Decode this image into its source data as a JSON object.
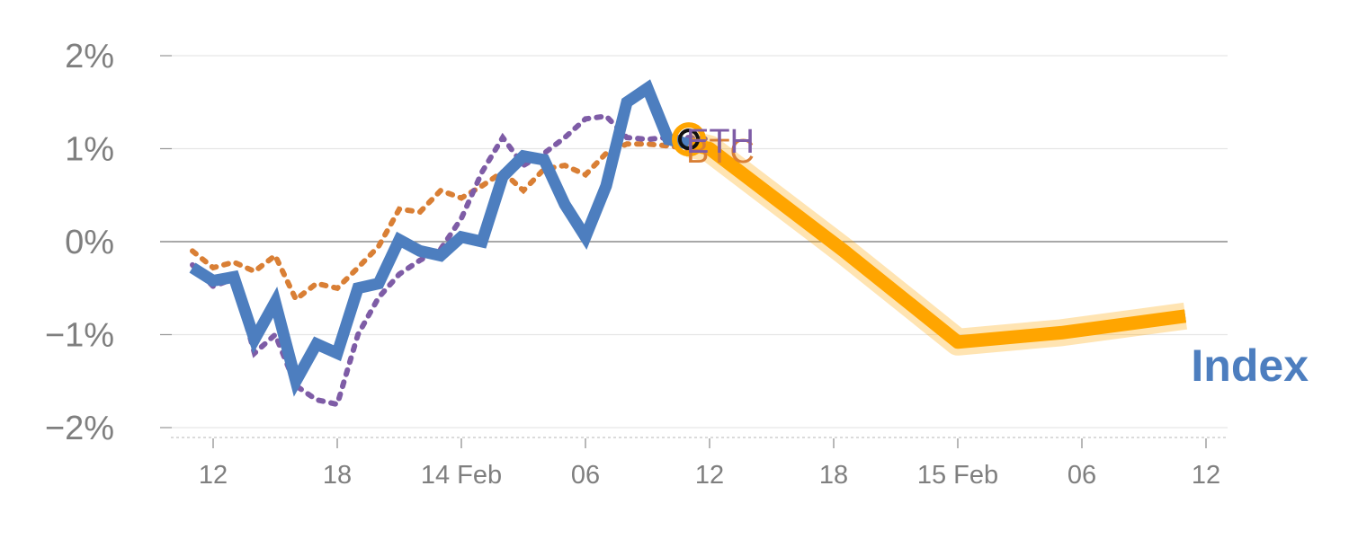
{
  "chart_data": {
    "type": "line",
    "title": "",
    "xlabel": "",
    "ylabel": "",
    "ylim": [
      -2.1,
      2.1
    ],
    "yticks": [
      2,
      1,
      0,
      -1,
      -2
    ],
    "ytick_labels": [
      "2%",
      "1%",
      "0%",
      "−1%",
      "−2%"
    ],
    "xticks": [
      {
        "t": 0,
        "label": "12"
      },
      {
        "t": 6,
        "label": "18"
      },
      {
        "t": 12,
        "label": "14 Feb"
      },
      {
        "t": 18,
        "label": "06"
      },
      {
        "t": 24,
        "label": "12"
      },
      {
        "t": 30,
        "label": "18"
      },
      {
        "t": 36,
        "label": "15 Feb"
      },
      {
        "t": 42,
        "label": "06"
      },
      {
        "t": 48,
        "label": "12"
      }
    ],
    "x_unit": "hours since 13 Feb 12:00",
    "grid": true,
    "zero_line": true,
    "series": [
      {
        "name": "BTC",
        "style": "dotted",
        "color": "#d97f35",
        "x": [
          -1,
          0,
          1,
          2,
          3,
          4,
          5,
          6,
          7,
          8,
          9,
          10,
          11,
          12,
          13,
          14,
          15,
          16,
          17,
          18,
          19,
          20,
          21,
          22,
          23,
          24
        ],
        "y": [
          -0.1,
          -0.28,
          -0.22,
          -0.32,
          -0.15,
          -0.62,
          -0.45,
          -0.5,
          -0.28,
          -0.05,
          0.35,
          0.32,
          0.55,
          0.47,
          0.6,
          0.75,
          0.55,
          0.78,
          0.82,
          0.72,
          0.95,
          1.05,
          1.05,
          1.03,
          1.0,
          1.05
        ]
      },
      {
        "name": "ETH",
        "style": "dotted",
        "color": "#7e5ca6",
        "x": [
          -1,
          0,
          1,
          2,
          3,
          4,
          5,
          6,
          7,
          8,
          9,
          10,
          11,
          12,
          13,
          14,
          15,
          16,
          17,
          18,
          19,
          20,
          21,
          22,
          23,
          24
        ],
        "y": [
          -0.25,
          -0.48,
          -0.4,
          -1.2,
          -1.0,
          -1.55,
          -1.7,
          -1.75,
          -1.0,
          -0.6,
          -0.35,
          -0.2,
          -0.08,
          0.25,
          0.75,
          1.12,
          0.82,
          0.95,
          1.12,
          1.32,
          1.35,
          1.12,
          1.1,
          1.12,
          1.12,
          1.1
        ]
      },
      {
        "name": "Index",
        "style": "solid",
        "color": "#4d7ebf",
        "x": [
          -1,
          0,
          1,
          2,
          3,
          4,
          5,
          6,
          7,
          8,
          9,
          10,
          11,
          12,
          13,
          14,
          15,
          16,
          17,
          18,
          19,
          20,
          21,
          22,
          23,
          24,
          30.5,
          36,
          41,
          47
        ],
        "y": [
          -0.28,
          -0.42,
          -0.38,
          -1.05,
          -0.65,
          -1.5,
          -1.1,
          -1.2,
          -0.5,
          -0.45,
          0.02,
          -0.1,
          -0.15,
          0.05,
          0.0,
          0.7,
          0.92,
          0.88,
          0.4,
          0.05,
          0.6,
          1.5,
          1.65,
          1.1,
          1.05,
          1.0,
          -0.1,
          -1.08,
          -0.98,
          -0.8
        ]
      }
    ],
    "highlight": {
      "label": "Index",
      "color": "#ffa500",
      "from_x": 23,
      "to_x": 47,
      "marker_x": 23,
      "marker_y": 1.1
    }
  }
}
